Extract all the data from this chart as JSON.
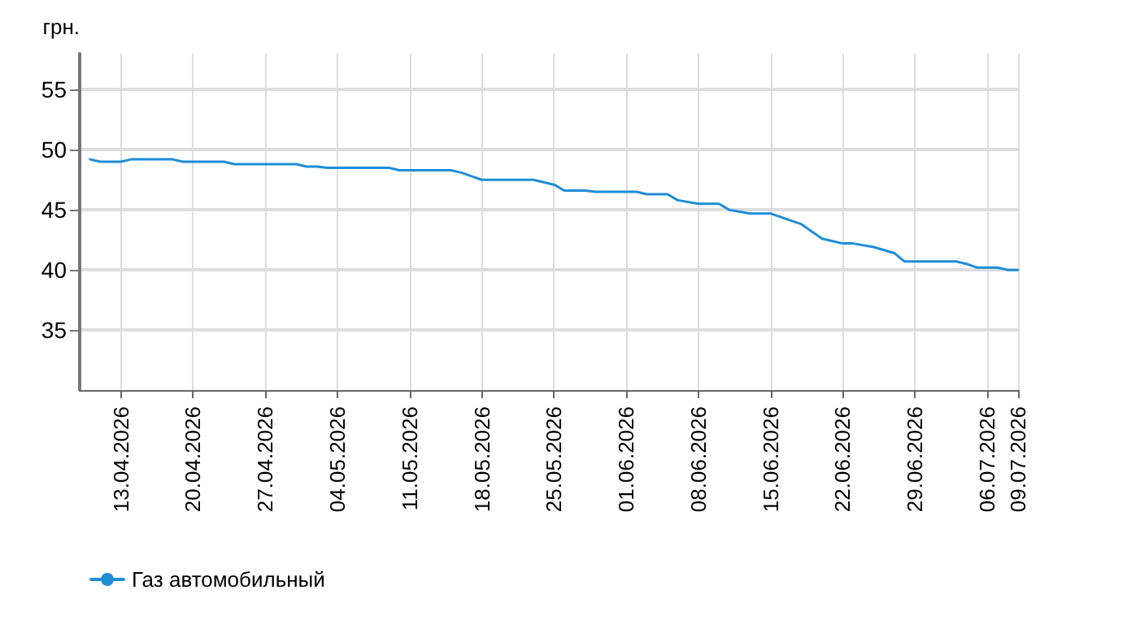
{
  "chart_data": {
    "type": "line",
    "ylabel": "грн.",
    "xlim": [
      "2026-04-09",
      "2026-07-09"
    ],
    "ylim": [
      30,
      58
    ],
    "yticks": [
      35,
      40,
      45,
      50,
      55
    ],
    "xticks": [
      {
        "value": "2026-04-13",
        "label": "13.04.2026"
      },
      {
        "value": "2026-04-20",
        "label": "20.04.2026"
      },
      {
        "value": "2026-04-27",
        "label": "27.04.2026"
      },
      {
        "value": "2026-05-04",
        "label": "04.05.2026"
      },
      {
        "value": "2026-05-11",
        "label": "11.05.2026"
      },
      {
        "value": "2026-05-18",
        "label": "18.05.2026"
      },
      {
        "value": "2026-05-25",
        "label": "25.05.2026"
      },
      {
        "value": "2026-06-01",
        "label": "01.06.2026"
      },
      {
        "value": "2026-06-08",
        "label": "08.06.2026"
      },
      {
        "value": "2026-06-15",
        "label": "15.06.2026"
      },
      {
        "value": "2026-06-22",
        "label": "22.06.2026"
      },
      {
        "value": "2026-06-29",
        "label": "29.06.2026"
      },
      {
        "value": "2026-07-06",
        "label": "06.07.2026"
      },
      {
        "value": "2026-07-09",
        "label": "09.07.2026"
      }
    ],
    "x": [
      "2026-04-10",
      "2026-04-11",
      "2026-04-13",
      "2026-04-14",
      "2026-04-18",
      "2026-04-19",
      "2026-04-23",
      "2026-04-24",
      "2026-04-30",
      "2026-05-01",
      "2026-05-02",
      "2026-05-03",
      "2026-05-09",
      "2026-05-10",
      "2026-05-15",
      "2026-05-16",
      "2026-05-17",
      "2026-05-18",
      "2026-05-23",
      "2026-05-25",
      "2026-05-26",
      "2026-05-28",
      "2026-05-29",
      "2026-06-02",
      "2026-06-03",
      "2026-06-05",
      "2026-06-06",
      "2026-06-08",
      "2026-06-10",
      "2026-06-11",
      "2026-06-13",
      "2026-06-15",
      "2026-06-16",
      "2026-06-18",
      "2026-06-20",
      "2026-06-22",
      "2026-06-23",
      "2026-06-25",
      "2026-06-27",
      "2026-06-28",
      "2026-07-03",
      "2026-07-04",
      "2026-07-05",
      "2026-07-07",
      "2026-07-08",
      "2026-07-09"
    ],
    "series": [
      {
        "name": "Газ автомобильный",
        "color": "#1f8dd6",
        "values": [
          49.2,
          49.0,
          49.0,
          49.2,
          49.2,
          49.0,
          49.0,
          48.8,
          48.8,
          48.6,
          48.6,
          48.5,
          48.5,
          48.3,
          48.3,
          48.1,
          47.8,
          47.5,
          47.5,
          47.1,
          46.6,
          46.6,
          46.5,
          46.5,
          46.3,
          46.3,
          45.8,
          45.5,
          45.5,
          45.0,
          44.7,
          44.7,
          44.4,
          43.8,
          42.6,
          42.2,
          42.2,
          41.9,
          41.4,
          40.7,
          40.7,
          40.5,
          40.2,
          40.2,
          40.0,
          40.0
        ]
      }
    ],
    "grid": true,
    "legend": "bottom left",
    "marker": "none",
    "line_style": "solid"
  }
}
